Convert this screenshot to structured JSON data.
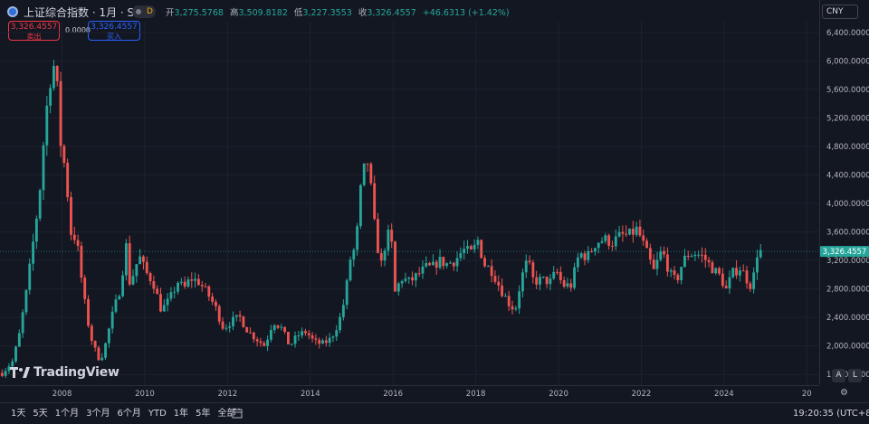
{
  "header": {
    "symbol_title": "上证综合指数 · 1月 · SSE",
    "indicator_letter": "D",
    "ohlc": {
      "open_label": "开",
      "open": "3,275.5768",
      "high_label": "高",
      "high": "3,509.8182",
      "low_label": "低",
      "low": "3,227.3553",
      "close_label": "收",
      "close": "3,326.4557",
      "change": "+46.6313 (+1.42%)"
    }
  },
  "trade": {
    "sell_price": "3,326.4557",
    "sell_label": "卖出",
    "spread": "0.0000",
    "buy_price": "3,326.4557",
    "buy_label": "买入"
  },
  "currency": "CNY",
  "last_price_label": "3,326.4557",
  "logo_text": "TradingView",
  "scale_buttons": {
    "auto": "A",
    "log": "L"
  },
  "ranges": [
    "1天",
    "5天",
    "1个月",
    "3个月",
    "6个月",
    "YTD",
    "1年",
    "5年",
    "全部"
  ],
  "clock": "19:20:35 (UTC+8)",
  "icons": {
    "calendar": "calendar-icon",
    "settings": "gear-icon",
    "symbol": "sse-logo-icon"
  },
  "colors": {
    "up": "#26a69a",
    "down": "#ef5350",
    "background": "#131722",
    "grid": "#1e222d",
    "text": "#d1d4dc",
    "sell": "#f23645",
    "buy": "#2962ff"
  },
  "chart_data": {
    "type": "candlestick",
    "interval": "1M",
    "ylim": [
      1450,
      6550
    ],
    "y_ticks": [
      1600,
      2000,
      2400,
      2800,
      3200,
      3600,
      4000,
      4400,
      4800,
      5200,
      5600,
      6000,
      6400
    ],
    "y_tick_labels": [
      "1,600.0000",
      "2,000.0000",
      "2,400.0000",
      "2,800.0000",
      "3,200.0000",
      "3,600.0000",
      "4,000.0000",
      "4,400.0000",
      "4,800.0000",
      "5,200.0000",
      "5,600.0000",
      "6,000.0000",
      "6,400.0000"
    ],
    "x_ticks": [
      "2008",
      "2010",
      "2012",
      "2014",
      "2016",
      "2018",
      "2020",
      "2022",
      "2024",
      "20"
    ],
    "x_tick_years": [
      2008,
      2010,
      2012,
      2014,
      2016,
      2018,
      2020,
      2022,
      2024,
      2026
    ],
    "x_range": [
      2006.5,
      2026.3
    ],
    "last_price": 3326.4557,
    "close_path": [
      [
        2006.55,
        1620
      ],
      [
        2006.8,
        1780
      ],
      [
        2006.95,
        2100
      ],
      [
        2007.15,
        2800
      ],
      [
        2007.3,
        3450
      ],
      [
        2007.45,
        4100
      ],
      [
        2007.6,
        5200
      ],
      [
        2007.75,
        5900
      ],
      [
        2007.85,
        5950
      ],
      [
        2007.95,
        4900
      ],
      [
        2008.1,
        4400
      ],
      [
        2008.2,
        3600
      ],
      [
        2008.35,
        3500
      ],
      [
        2008.5,
        2800
      ],
      [
        2008.6,
        2400
      ],
      [
        2008.75,
        2000
      ],
      [
        2008.9,
        1820
      ],
      [
        2009.0,
        1900
      ],
      [
        2009.2,
        2400
      ],
      [
        2009.4,
        2800
      ],
      [
        2009.55,
        3400
      ],
      [
        2009.65,
        2800
      ],
      [
        2009.75,
        3100
      ],
      [
        2009.9,
        3250
      ],
      [
        2010.0,
        3050
      ],
      [
        2010.2,
        2900
      ],
      [
        2010.4,
        2500
      ],
      [
        2010.6,
        2650
      ],
      [
        2010.8,
        2900
      ],
      [
        2010.95,
        2800
      ],
      [
        2011.1,
        2950
      ],
      [
        2011.3,
        2900
      ],
      [
        2011.5,
        2750
      ],
      [
        2011.7,
        2550
      ],
      [
        2011.9,
        2250
      ],
      [
        2012.1,
        2350
      ],
      [
        2012.3,
        2400
      ],
      [
        2012.5,
        2200
      ],
      [
        2012.7,
        2100
      ],
      [
        2012.9,
        2000
      ],
      [
        2013.1,
        2350
      ],
      [
        2013.3,
        2250
      ],
      [
        2013.5,
        2000
      ],
      [
        2013.7,
        2150
      ],
      [
        2013.9,
        2200
      ],
      [
        2014.1,
        2050
      ],
      [
        2014.3,
        2030
      ],
      [
        2014.5,
        2100
      ],
      [
        2014.7,
        2350
      ],
      [
        2014.85,
        2700
      ],
      [
        2014.95,
        3200
      ],
      [
        2015.1,
        3400
      ],
      [
        2015.25,
        4400
      ],
      [
        2015.4,
        4600
      ],
      [
        2015.55,
        3700
      ],
      [
        2015.7,
        3100
      ],
      [
        2015.85,
        3550
      ],
      [
        2015.95,
        3550
      ],
      [
        2016.05,
        2750
      ],
      [
        2016.2,
        2950
      ],
      [
        2016.4,
        2900
      ],
      [
        2016.6,
        3000
      ],
      [
        2016.8,
        3100
      ],
      [
        2016.95,
        3100
      ],
      [
        2017.1,
        3200
      ],
      [
        2017.3,
        3150
      ],
      [
        2017.5,
        3200
      ],
      [
        2017.7,
        3350
      ],
      [
        2017.9,
        3300
      ],
      [
        2018.05,
        3480
      ],
      [
        2018.2,
        3150
      ],
      [
        2018.4,
        3050
      ],
      [
        2018.6,
        2800
      ],
      [
        2018.8,
        2600
      ],
      [
        2018.95,
        2500
      ],
      [
        2019.1,
        2950
      ],
      [
        2019.25,
        3200
      ],
      [
        2019.4,
        2900
      ],
      [
        2019.6,
        2930
      ],
      [
        2019.8,
        2900
      ],
      [
        2019.95,
        3050
      ],
      [
        2020.1,
        2850
      ],
      [
        2020.3,
        2850
      ],
      [
        2020.5,
        3300
      ],
      [
        2020.7,
        3250
      ],
      [
        2020.9,
        3450
      ],
      [
        2021.1,
        3500
      ],
      [
        2021.3,
        3450
      ],
      [
        2021.5,
        3550
      ],
      [
        2021.7,
        3550
      ],
      [
        2021.9,
        3640
      ],
      [
        2022.1,
        3350
      ],
      [
        2022.3,
        3050
      ],
      [
        2022.5,
        3350
      ],
      [
        2022.7,
        3000
      ],
      [
        2022.85,
        2900
      ],
      [
        2022.95,
        3100
      ],
      [
        2023.1,
        3280
      ],
      [
        2023.3,
        3300
      ],
      [
        2023.5,
        3250
      ],
      [
        2023.7,
        3100
      ],
      [
        2023.9,
        2980
      ],
      [
        2024.05,
        2790
      ],
      [
        2024.2,
        3020
      ],
      [
        2024.4,
        3100
      ],
      [
        2024.6,
        2880
      ],
      [
        2024.7,
        2810
      ],
      [
        2024.75,
        3350
      ],
      [
        2024.82,
        3280
      ],
      [
        2024.87,
        3326
      ]
    ]
  }
}
